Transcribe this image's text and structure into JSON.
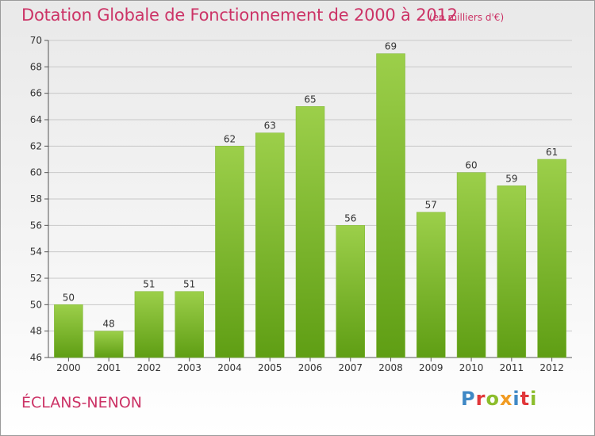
{
  "header": {
    "title": "Dotation Globale de Fonctionnement de 2000 à 2012",
    "subtitle": "(en milliers d'€)"
  },
  "footer": {
    "place": "ÉCLANS-NENON",
    "logo": "Proxiti",
    "logo_colors": [
      "#3f88c5",
      "#e1373a",
      "#8cbd2c",
      "#f19b22",
      "#3f88c5",
      "#e1373a",
      "#8cbd2c"
    ]
  },
  "colors": {
    "bar_top": "#9ccf4a",
    "bar_bottom": "#5f9e14",
    "title": "#cc3366",
    "grid": "#c8c8c8"
  },
  "chart_data": {
    "type": "bar",
    "categories": [
      "2000",
      "2001",
      "2002",
      "2003",
      "2004",
      "2005",
      "2006",
      "2007",
      "2008",
      "2009",
      "2010",
      "2011",
      "2012"
    ],
    "values": [
      50,
      48,
      51,
      51,
      62,
      63,
      65,
      56,
      69,
      57,
      60,
      59,
      61
    ],
    "ylim": [
      46,
      70
    ],
    "yticks": [
      46,
      48,
      50,
      52,
      54,
      56,
      58,
      60,
      62,
      64,
      66,
      68,
      70
    ],
    "grid": true,
    "legend": "none"
  }
}
